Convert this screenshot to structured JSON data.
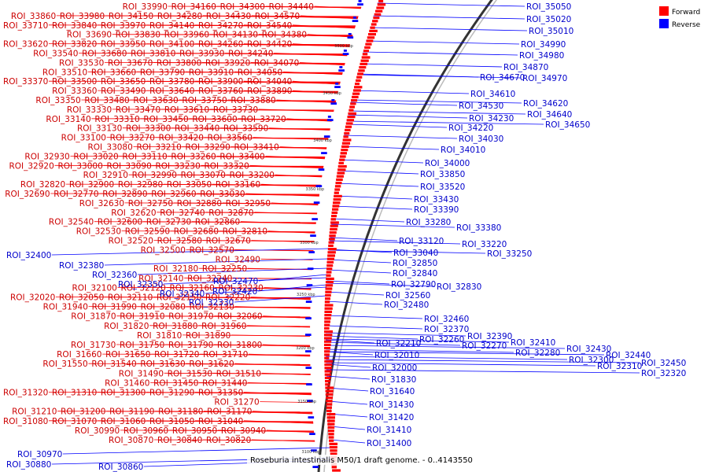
{
  "legend": {
    "items": [
      {
        "label": "Forward",
        "color": "#ff0000"
      },
      {
        "label": "Reverse",
        "color": "#0000ff"
      }
    ]
  },
  "caption": "Roseburia intestinalis M50/1 draft genome. - 0..4143550",
  "scale_ticks": [
    "3500 kbp",
    "3450 kbp",
    "3400 kbp",
    "3350 kbp",
    "3300 kbp",
    "3250 kbp",
    "3200 kbp",
    "3150 kbp",
    "3100 kbp"
  ],
  "colors": {
    "forward": "#ff0000",
    "reverse": "#0000ff",
    "forward_label": "#cc0000",
    "reverse_label": "#0000cc"
  },
  "forward_labels": [
    "ROI_33990",
    "ROI_34160",
    "ROI_34300",
    "ROI_34440",
    "ROI_33860",
    "ROI_33980",
    "ROI_34150",
    "ROI_34280",
    "ROI_34430",
    "ROI_34570",
    "ROI_33710",
    "ROI_33840",
    "ROI_33970",
    "ROI_34140",
    "ROI_34270",
    "ROI_34540",
    "ROI_33690",
    "ROI_33830",
    "ROI_33960",
    "ROI_34130",
    "ROI_34380",
    "ROI_33620",
    "ROI_33820",
    "ROI_33950",
    "ROI_34100",
    "ROI_34260",
    "ROI_34420",
    "ROI_33540",
    "ROI_33680",
    "ROI_33810",
    "ROI_33930",
    "ROI_34240",
    "ROI_33530",
    "ROI_33670",
    "ROI_33800",
    "ROI_33920",
    "ROI_34070",
    "ROI_33510",
    "ROI_33660",
    "ROI_33790",
    "ROI_33910",
    "ROI_34050",
    "ROI_33370",
    "ROI_33500",
    "ROI_33650",
    "ROI_33780",
    "ROI_33900",
    "ROI_34040",
    "ROI_33360",
    "ROI_33490",
    "ROI_33640",
    "ROI_33760",
    "ROI_33890",
    "ROI_33350",
    "ROI_33480",
    "ROI_33630",
    "ROI_33750",
    "ROI_33880",
    "ROI_33330",
    "ROI_33470",
    "ROI_33610",
    "ROI_33730",
    "ROI_33140",
    "ROI_33310",
    "ROI_33450",
    "ROI_33600",
    "ROI_33720",
    "ROI_33130",
    "ROI_33300",
    "ROI_33440",
    "ROI_33590",
    "ROI_33100",
    "ROI_33270",
    "ROI_33420",
    "ROI_33560",
    "ROI_33080",
    "ROI_33210",
    "ROI_33290",
    "ROI_33410",
    "ROI_32930",
    "ROI_33020",
    "ROI_33110",
    "ROI_33260",
    "ROI_33400",
    "ROI_32920",
    "ROI_33000",
    "ROI_33090",
    "ROI_33230",
    "ROI_33320",
    "ROI_32910",
    "ROI_32990",
    "ROI_33070",
    "ROI_33200",
    "ROI_32820",
    "ROI_32900",
    "ROI_32980",
    "ROI_33050",
    "ROI_33160",
    "ROI_32690",
    "ROI_32770",
    "ROI_32890",
    "ROI_32960",
    "ROI_33030",
    "ROI_32630",
    "ROI_32750",
    "ROI_32880",
    "ROI_32950",
    "ROI_32620",
    "ROI_32740",
    "ROI_32870",
    "ROI_32540",
    "ROI_32600",
    "ROI_32730",
    "ROI_32860",
    "ROI_32530",
    "ROI_32590",
    "ROI_32680",
    "ROI_32810",
    "ROI_32520",
    "ROI_32580",
    "ROI_32670",
    "ROI_32500",
    "ROI_32570",
    "ROI_32490",
    "ROI_32180",
    "ROI_32250",
    "ROI_32140",
    "ROI_32240",
    "ROI_32100",
    "ROI_32120",
    "ROI_32160",
    "ROI_32230",
    "ROI_32020",
    "ROI_32050",
    "ROI_32110",
    "ROI_32150",
    "ROI_32220",
    "ROI_31940",
    "ROI_31990",
    "ROI_32080",
    "ROI_32130",
    "ROI_31870",
    "ROI_31910",
    "ROI_31970",
    "ROI_32060",
    "ROI_31820",
    "ROI_31880",
    "ROI_31960",
    "ROI_31810",
    "ROI_31890",
    "ROI_31730",
    "ROI_31750",
    "ROI_31790",
    "ROI_31800",
    "ROI_31660",
    "ROI_31650",
    "ROI_31720",
    "ROI_31710",
    "ROI_31550",
    "ROI_31540",
    "ROI_31630",
    "ROI_31620",
    "ROI_31490",
    "ROI_31530",
    "ROI_31510",
    "ROI_31460",
    "ROI_31450",
    "ROI_31440",
    "ROI_31320",
    "ROI_31310",
    "ROI_31300",
    "ROI_31290",
    "ROI_31350",
    "ROI_31270",
    "ROI_31210",
    "ROI_31200",
    "ROI_31190",
    "ROI_31180",
    "ROI_31170",
    "ROI_31080",
    "ROI_31070",
    "ROI_31060",
    "ROI_31050",
    "ROI_31040",
    "ROI_30990",
    "ROI_30960",
    "ROI_30950",
    "ROI_30940",
    "ROI_30870",
    "ROI_30840",
    "ROI_30820"
  ],
  "reverse_labels": [
    "ROI_35050",
    "ROI_35020",
    "ROI_35010",
    "ROI_34990",
    "ROI_34980",
    "ROI_34870",
    "ROI_34670",
    "ROI_34970",
    "ROI_34610",
    "ROI_34530",
    "ROI_34620",
    "ROI_34640",
    "ROI_34650",
    "ROI_34230",
    "ROI_34220",
    "ROI_34030",
    "ROI_34010",
    "ROI_34000",
    "ROI_33850",
    "ROI_33520",
    "ROI_33430",
    "ROI_33390",
    "ROI_33280",
    "ROI_33380",
    "ROI_33220",
    "ROI_33120",
    "ROI_33250",
    "ROI_33040",
    "ROI_32850",
    "ROI_32840",
    "ROI_32790",
    "ROI_32830",
    "ROI_32560",
    "ROI_32480",
    "ROI_32400",
    "ROI_32380",
    "ROI_32360",
    "ROI_32350",
    "ROI_32470",
    "ROI_32340",
    "ROI_32420",
    "ROI_32330",
    "ROI_32460",
    "ROI_32370",
    "ROI_32260",
    "ROI_32390",
    "ROI_32270",
    "ROI_32410",
    "ROI_32280",
    "ROI_32430",
    "ROI_32300",
    "ROI_32440",
    "ROI_32310",
    "ROI_32450",
    "ROI_32320",
    "ROI_32210",
    "ROI_32010",
    "ROI_32000",
    "ROI_31830",
    "ROI_31640",
    "ROI_31430",
    "ROI_31420",
    "ROI_31410",
    "ROI_31400",
    "ROI_30970",
    "ROI_30880",
    "ROI_30860"
  ]
}
